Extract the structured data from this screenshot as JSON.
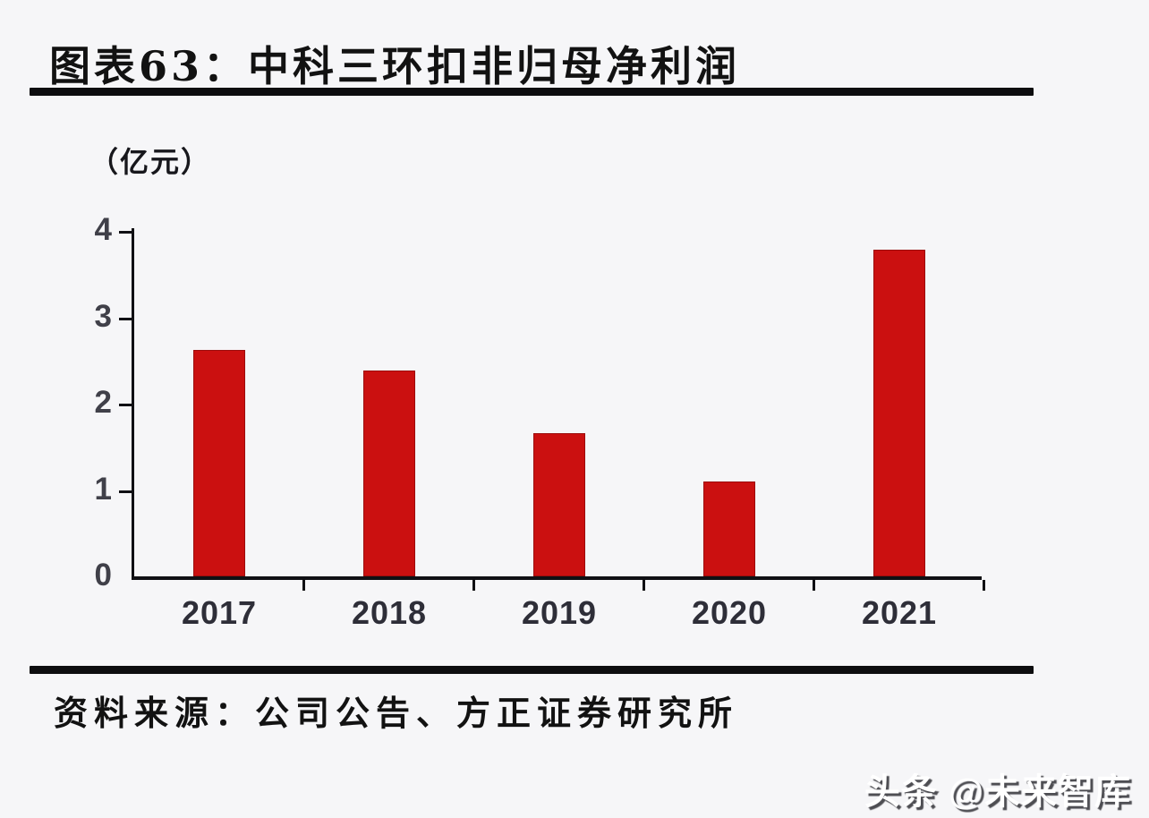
{
  "page": {
    "background": "#f6f6f8"
  },
  "header": {
    "title": "图表63：中科三环扣非归母净利润"
  },
  "chart_data": {
    "type": "bar",
    "title": "中科三环扣非归母净利润",
    "unit_label": "（亿元）",
    "categories": [
      "2017",
      "2018",
      "2019",
      "2020",
      "2021"
    ],
    "values": [
      2.62,
      2.38,
      1.66,
      1.1,
      3.78
    ],
    "xlabel": "",
    "ylabel": "（亿元）",
    "ylim": [
      0,
      4
    ],
    "yticks": [
      0,
      1,
      2,
      3,
      4
    ],
    "grid": false,
    "legend": "none",
    "bar_color": "#cb1010",
    "axis_color": "#101014"
  },
  "footer": {
    "source": "资料来源：公司公告、方正证券研究所"
  },
  "watermark": {
    "text": "头条 @未来智库"
  }
}
